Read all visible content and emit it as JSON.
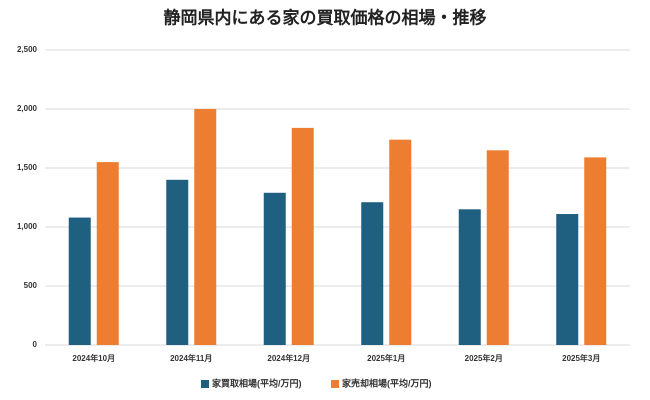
{
  "chart_data": {
    "type": "bar",
    "title": "静岡県内にある家の買取価格の相場・推移",
    "categories": [
      "2024年10月",
      "2024年11月",
      "2024年12月",
      "2025年1月",
      "2025年2月",
      "2025年3月"
    ],
    "series": [
      {
        "name": "家買取相場(平均/万円)",
        "color": "#1f5f80",
        "values": [
          1080,
          1400,
          1290,
          1210,
          1150,
          1110
        ]
      },
      {
        "name": "家売却相場(平均/万円)",
        "color": "#ed7d31",
        "values": [
          1550,
          2000,
          1840,
          1740,
          1650,
          1590
        ]
      }
    ],
    "ylim": [
      0,
      2500
    ],
    "yticks": [
      0,
      500,
      {
        "value": 1000,
        "label": "1,000"
      },
      {
        "value": 1500,
        "label": "1,500"
      },
      {
        "value": 2000,
        "label": "2,000"
      },
      {
        "value": 2500,
        "label": "2,500"
      }
    ],
    "grid": true,
    "legend": "bottom"
  }
}
